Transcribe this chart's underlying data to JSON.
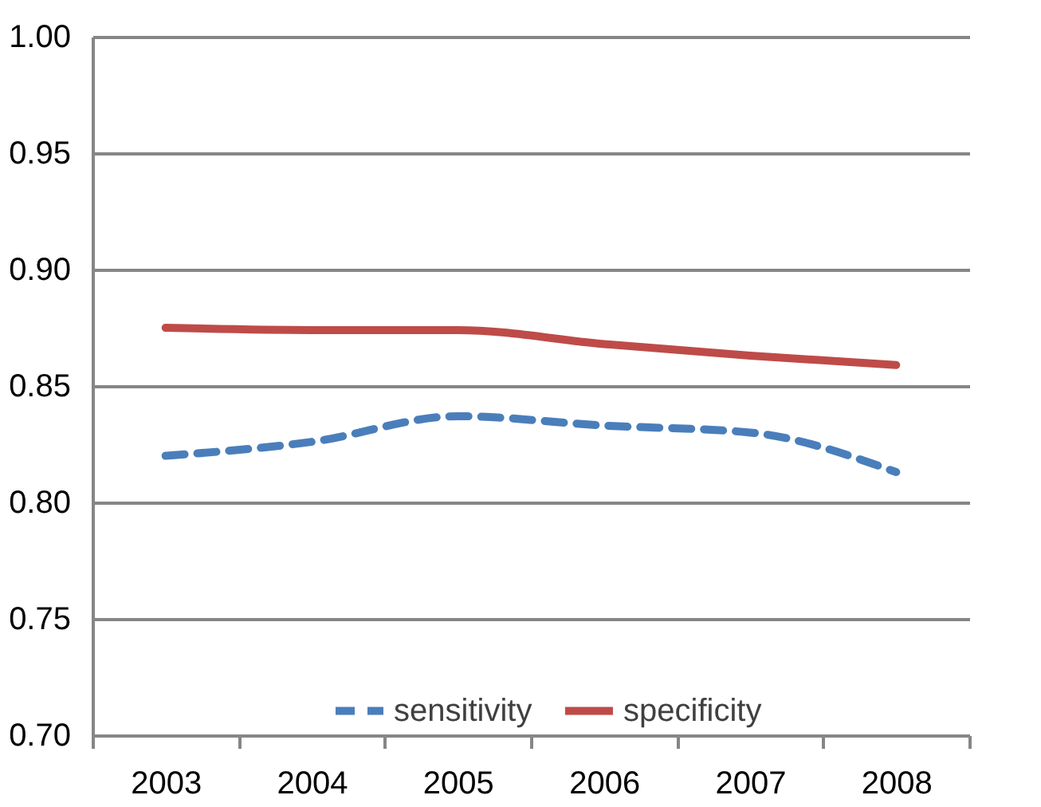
{
  "chart_data": {
    "type": "line",
    "categories": [
      "2003",
      "2004",
      "2005",
      "2006",
      "2007",
      "2008"
    ],
    "series": [
      {
        "name": "sensitivity",
        "color": "#4a7ebb",
        "line_style": "dashed",
        "values": [
          0.82,
          0.826,
          0.837,
          0.833,
          0.83,
          0.813
        ]
      },
      {
        "name": "specificity",
        "color": "#be4b48",
        "line_style": "solid",
        "values": [
          0.875,
          0.874,
          0.874,
          0.868,
          0.863,
          0.859
        ]
      }
    ],
    "ylim": [
      0.7,
      1.0
    ],
    "yticks": [
      {
        "value": 0.7,
        "label": "0.70"
      },
      {
        "value": 0.75,
        "label": "0.75"
      },
      {
        "value": 0.8,
        "label": "0.80"
      },
      {
        "value": 0.85,
        "label": "0.85"
      },
      {
        "value": 0.9,
        "label": "0.90"
      },
      {
        "value": 0.95,
        "label": "0.95"
      },
      {
        "value": 1.0,
        "label": "1.00"
      }
    ],
    "grid": "y",
    "legend": "bottom",
    "marker": "none"
  }
}
